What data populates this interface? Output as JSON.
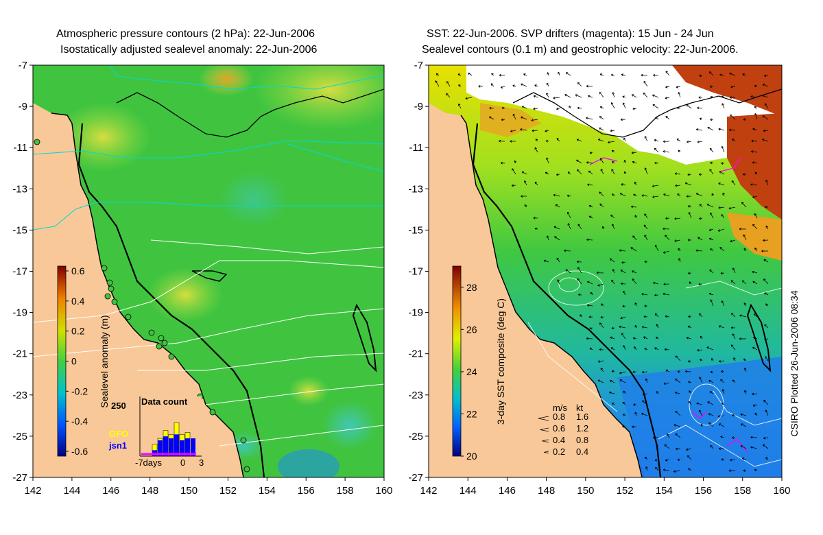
{
  "left_panel": {
    "title_line1": "Atmospheric pressure contours (2 hPa): 22-Jun-2006",
    "title_line2": "Isostatically adjusted sealevel anomaly: 22-Jun-2006",
    "lat_ticks": [
      "-7",
      "-9",
      "-11",
      "-13",
      "-15",
      "-17",
      "-19",
      "-21",
      "-23",
      "-25",
      "-27"
    ],
    "lon_ticks": [
      "142",
      "144",
      "146",
      "148",
      "150",
      "152",
      "154",
      "156",
      "158",
      "160"
    ],
    "colorbar": {
      "label": "Sealevel anomaly (m)",
      "ticks": [
        "0.6",
        "0.4",
        "0.2",
        "0",
        "-0.2",
        "-0.4",
        "-0.6"
      ],
      "range": [
        -0.6,
        0.6
      ]
    },
    "inset": {
      "title": "Data count",
      "ymax_label": "250",
      "xlabel": "-7days",
      "xtick_0": "0",
      "xtick_3": "3",
      "legend": [
        {
          "name": "GFO",
          "color": "#ffff00"
        },
        {
          "name": "jsn1",
          "color": "#0000ff"
        }
      ],
      "counts_yellow": [
        0,
        0,
        60,
        90,
        130,
        110,
        170,
        110,
        120,
        0
      ],
      "counts_blue": [
        0,
        0,
        30,
        80,
        100,
        90,
        110,
        80,
        90,
        90
      ]
    }
  },
  "right_panel": {
    "title_line1": "SST: 22-Jun-2006. SVP drifters (magenta): 15 Jun - 24 Jun",
    "title_line2": "Sealevel contours (0.1 m) and geostrophic velocity: 22-Jun-2006.",
    "lat_ticks": [
      "-7",
      "-9",
      "-11",
      "-13",
      "-15",
      "-17",
      "-19",
      "-21",
      "-23",
      "-25",
      "-27"
    ],
    "lon_ticks": [
      "142",
      "144",
      "146",
      "148",
      "150",
      "152",
      "154",
      "156",
      "158",
      "160"
    ],
    "colorbar": {
      "label": "3-day SST composite (deg C)",
      "ticks": [
        "28",
        "26",
        "24",
        "22",
        "20"
      ],
      "range": [
        20,
        29
      ]
    },
    "velocity_legend": {
      "header_ms": "m/s",
      "header_kt": "kt",
      "rows": [
        {
          "ms": "0.8",
          "kt": "1.6"
        },
        {
          "ms": "0.6",
          "kt": "1.2"
        },
        {
          "ms": "0.4",
          "kt": "0.8"
        },
        {
          "ms": "0.2",
          "kt": "0.4"
        }
      ]
    },
    "credit": "CSIRO Plotted 26-Jun-2006 08:34"
  },
  "colors": {
    "land": "#f8c898",
    "ocean_green": "#3cc43c",
    "coastline": "#000000",
    "pressure_contour": "#00d8d8",
    "drifter": "#ff00ff",
    "cloud": "#ffffff"
  }
}
